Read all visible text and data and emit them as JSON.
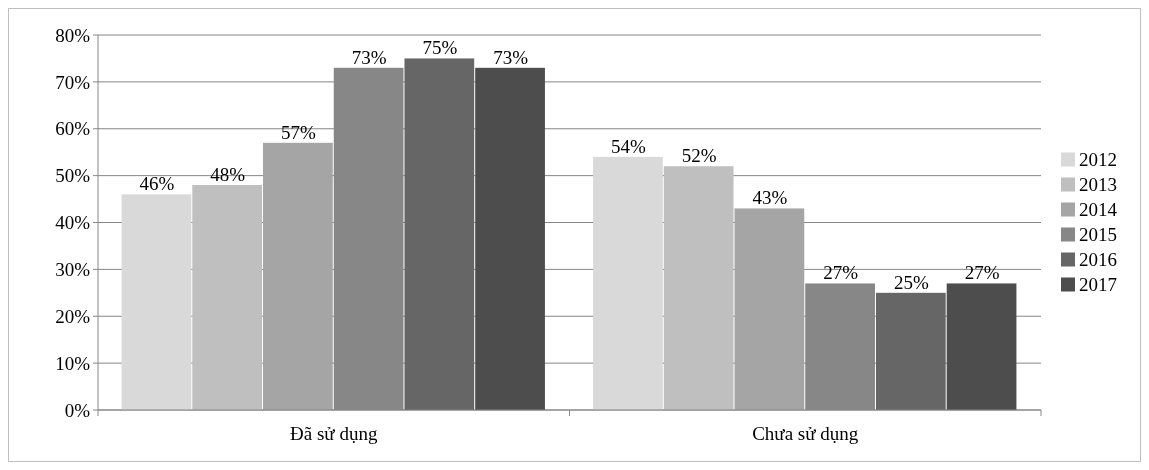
{
  "chart_data": {
    "type": "bar",
    "categories": [
      "Đã sử dụng",
      "Chưa sử dụng"
    ],
    "series": [
      {
        "name": "2012",
        "color": "#d9d9d9",
        "values": [
          46,
          54
        ],
        "value_labels": [
          "46%",
          "54%"
        ]
      },
      {
        "name": "2013",
        "color": "#bfbfbf",
        "values": [
          48,
          52
        ],
        "value_labels": [
          "48%",
          "52%"
        ]
      },
      {
        "name": "2014",
        "color": "#a5a5a5",
        "values": [
          57,
          43
        ],
        "value_labels": [
          "57%",
          "43%"
        ]
      },
      {
        "name": "2015",
        "color": "#878787",
        "values": [
          73,
          27
        ],
        "value_labels": [
          "73%",
          "27%"
        ]
      },
      {
        "name": "2016",
        "color": "#666666",
        "values": [
          75,
          25
        ],
        "value_labels": [
          "75%",
          "25%"
        ]
      },
      {
        "name": "2017",
        "color": "#4d4d4d",
        "values": [
          73,
          27
        ],
        "value_labels": [
          "73%",
          "27%"
        ]
      }
    ],
    "ylim": [
      0,
      80
    ],
    "yticks": [
      {
        "value": 0,
        "label": "0%"
      },
      {
        "value": 10,
        "label": "10%"
      },
      {
        "value": 20,
        "label": "20%"
      },
      {
        "value": 30,
        "label": "30%"
      },
      {
        "value": 40,
        "label": "40%"
      },
      {
        "value": 50,
        "label": "50%"
      },
      {
        "value": 60,
        "label": "60%"
      },
      {
        "value": 70,
        "label": "70%"
      },
      {
        "value": 80,
        "label": "80%"
      }
    ],
    "grid": "y",
    "legend": "right"
  }
}
